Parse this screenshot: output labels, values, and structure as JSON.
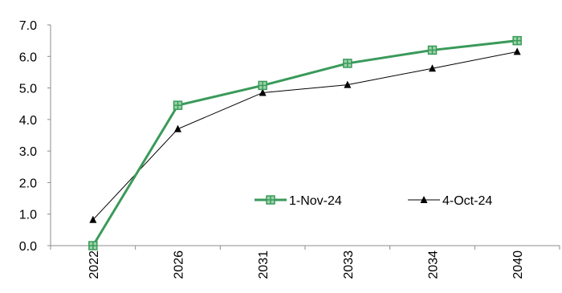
{
  "chart_data": {
    "type": "line",
    "categories": [
      "2022",
      "2026",
      "2031",
      "2033",
      "2034",
      "2040"
    ],
    "ylim": [
      0,
      7
    ],
    "yticks": [
      "0.0",
      "1.0",
      "2.0",
      "3.0",
      "4.0",
      "5.0",
      "6.0",
      "7.0"
    ],
    "grid": false,
    "legend_position": "center-right",
    "series": [
      {
        "name": "1-Nov-24",
        "values": [
          0.0,
          4.45,
          5.08,
          5.78,
          6.2,
          6.5
        ],
        "color": "#3a9a5a",
        "marker": "square-cross"
      },
      {
        "name": "4-Oct-24",
        "values": [
          0.82,
          3.7,
          4.85,
          5.1,
          5.62,
          6.15
        ],
        "color": "#000000",
        "marker": "triangle"
      }
    ]
  }
}
